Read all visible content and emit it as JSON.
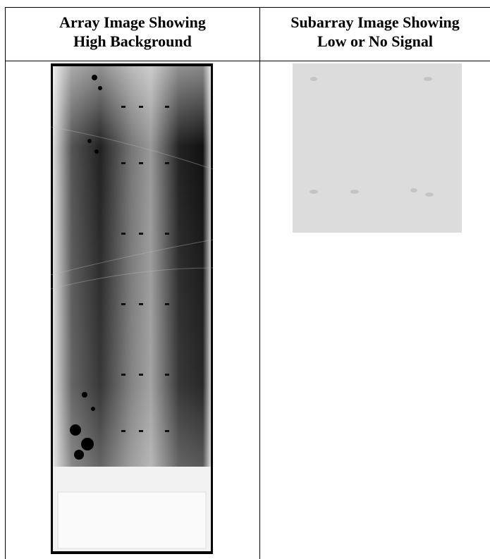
{
  "table": {
    "header": [
      [
        "Array Image Showing",
        "High Background"
      ],
      [
        "Subarray Image Showing",
        "Low or No Signal"
      ]
    ]
  }
}
